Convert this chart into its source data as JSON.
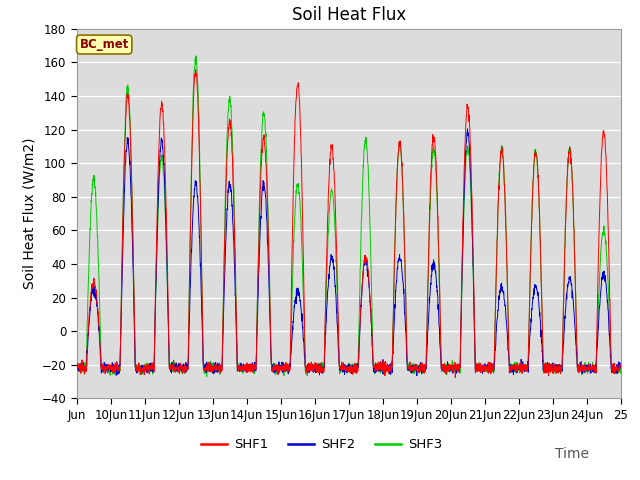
{
  "title": "Soil Heat Flux",
  "ylabel": "Soil Heat Flux (W/m2)",
  "xlabel": "Time",
  "ylim": [
    -40,
    180
  ],
  "yticks": [
    -40,
    -20,
    0,
    20,
    40,
    60,
    80,
    100,
    120,
    140,
    160,
    180
  ],
  "background_color": "#dcdcdc",
  "figure_bg": "#ffffff",
  "line_colors": {
    "SHF1": "#ff0000",
    "SHF2": "#0000cd",
    "SHF3": "#00cc00"
  },
  "legend_label": "BC_met",
  "legend_box_facecolor": "#ffffb0",
  "legend_box_edge": "#8b7000",
  "title_fontsize": 12,
  "label_fontsize": 10,
  "tick_fontsize": 8.5
}
